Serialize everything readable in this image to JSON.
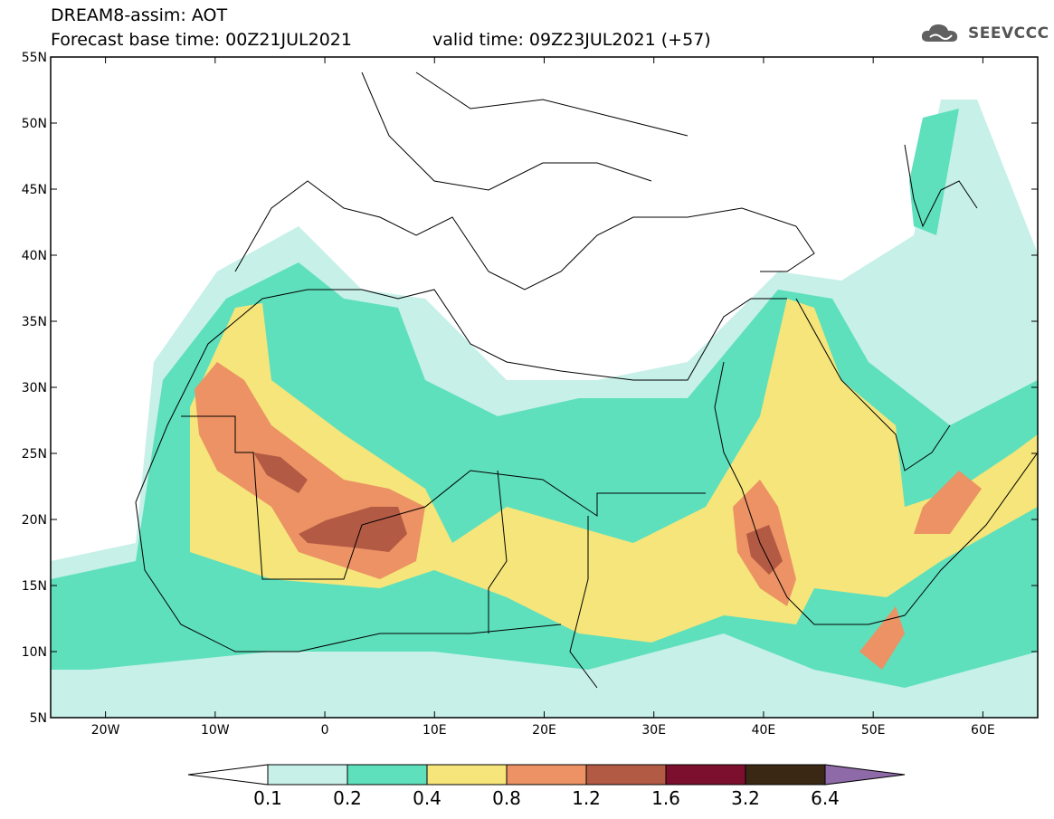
{
  "header": {
    "line1": "DREAM8-assim: AOT",
    "base_time": "Forecast base time: 00Z21JUL2021",
    "valid_time": "valid time: 09Z23JUL2021 (+57)"
  },
  "logo": {
    "text": "SEEVCCC",
    "icon": "cloud-icon"
  },
  "map": {
    "lat_ticks": [
      "55N",
      "50N",
      "45N",
      "40N",
      "35N",
      "30N",
      "25N",
      "20N",
      "15N",
      "10N",
      "5N"
    ],
    "lon_ticks": [
      "20W",
      "10W",
      "0",
      "10E",
      "20E",
      "30E",
      "40E",
      "50E",
      "60E"
    ],
    "lat_range": [
      5,
      55
    ],
    "lon_range": [
      -25,
      65
    ]
  },
  "colorbar": {
    "labels": [
      "0.1",
      "0.2",
      "0.4",
      "0.8",
      "1.2",
      "1.6",
      "3.2",
      "6.4"
    ],
    "colors": [
      "#ffffff",
      "#c6f0e8",
      "#5ee0bc",
      "#f5e57a",
      "#ec9264",
      "#b35a44",
      "#7d0f2e",
      "#3a2714",
      "#8f6aa8"
    ]
  }
}
